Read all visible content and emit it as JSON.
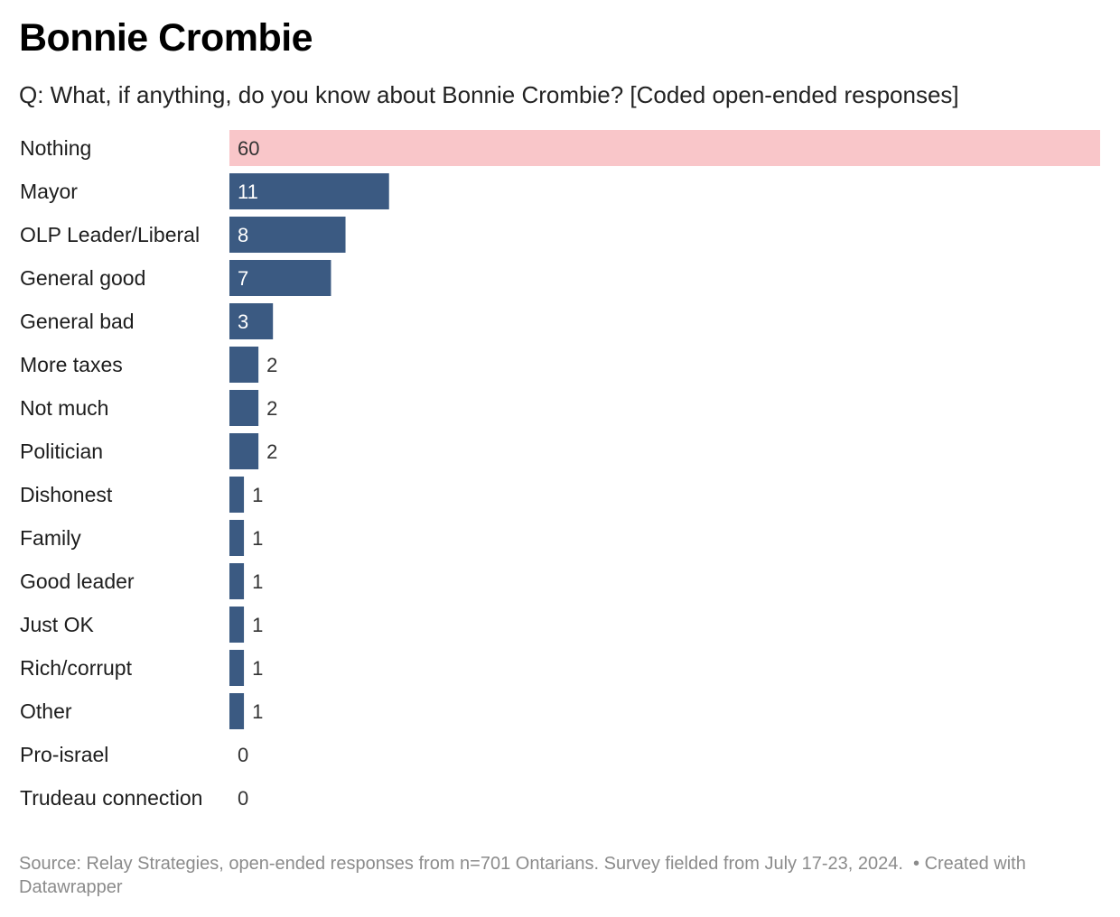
{
  "header": {
    "title": "Bonnie Crombie",
    "subtitle": "Q: What, if anything, do you know about Bonnie Crombie? [Coded open-ended responses]"
  },
  "footer": {
    "source": "Source: Relay Strategies, open-ended responses from n=701 Ontarians. Survey fielded from July 17-23, 2024.",
    "credit": "• Created with Datawrapper"
  },
  "colors": {
    "highlight_bar": "#f9c6c9",
    "bar": "#3b5a82",
    "label_inside_dark": "#333333",
    "label_inside_light": "#ffffff",
    "label_outside": "#333333"
  },
  "chart_data": {
    "type": "bar",
    "orientation": "horizontal",
    "categories": [
      "Nothing",
      "Mayor",
      "OLP Leader/Liberal",
      "General good",
      "General bad",
      "More taxes",
      "Not much",
      "Politician",
      "Dishonest",
      "Family",
      "Good leader",
      "Just OK",
      "Rich/corrupt",
      "Other",
      "Pro-israel",
      "Trudeau connection"
    ],
    "values": [
      60,
      11,
      8,
      7,
      3,
      2,
      2,
      2,
      1,
      1,
      1,
      1,
      1,
      1,
      0,
      0
    ],
    "highlight": [
      "Nothing"
    ],
    "xlim": [
      0,
      60
    ],
    "grid": false,
    "legend": "none"
  }
}
